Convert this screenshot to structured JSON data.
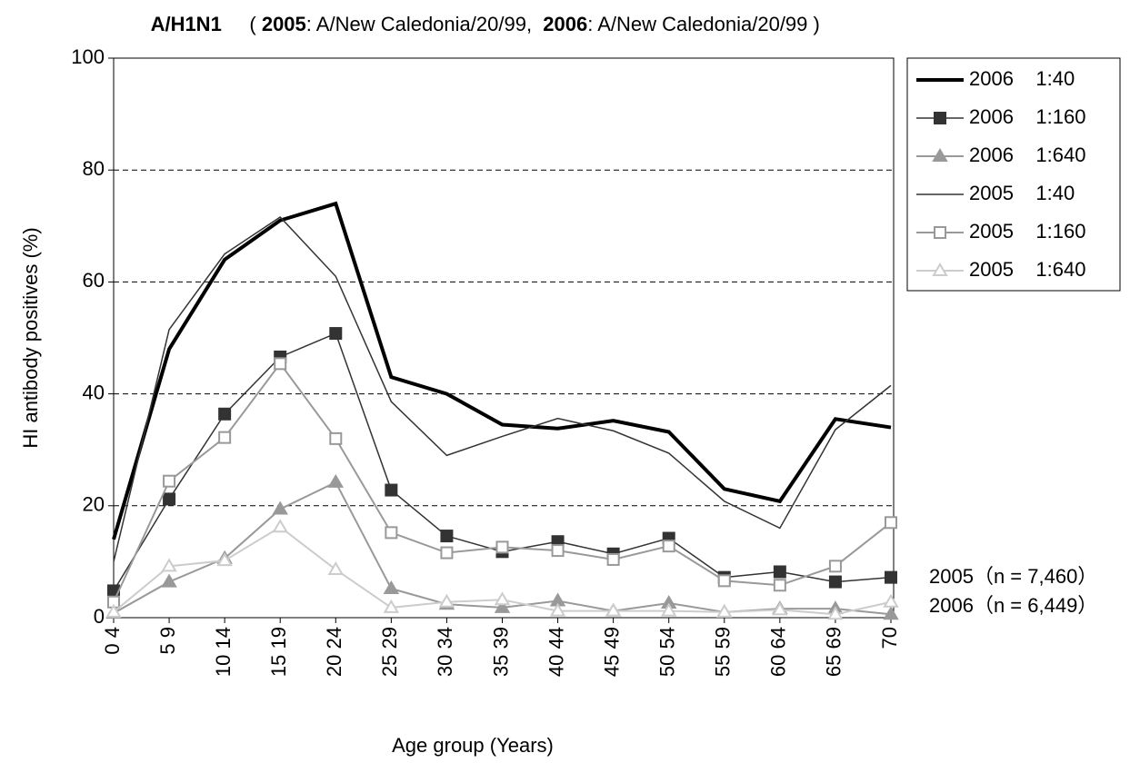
{
  "chart_data": {
    "type": "line",
    "title": "A/H1N1",
    "subtitle": {
      "open": "( ",
      "years": [
        "2005",
        "2006"
      ],
      "strains": [
        ": A/New Caledonia/20/99,  ",
        ": A/New Caledonia/20/99"
      ],
      "close": " )"
    },
    "y_label": "HI antibody positives (%)",
    "x_label": "Age group (Years)",
    "categories": [
      "0 4",
      "5 9",
      "10 14",
      "15 19",
      "20 24",
      "25 29",
      "30 34",
      "35 39",
      "40 44",
      "45 49",
      "50 54",
      "55 59",
      "60 64",
      "65 69",
      "70"
    ],
    "ylim": [
      0,
      100
    ],
    "yticks": [
      0,
      20,
      40,
      60,
      80,
      100
    ],
    "grid": true,
    "legend": "right",
    "annotations": [
      "2005（n = 7,460）",
      "2006（n = 6,449）"
    ],
    "series": [
      {
        "name": "2006    1:40",
        "color": "#000000",
        "width": 4,
        "marker": "none",
        "values": [
          14,
          48,
          64,
          71,
          74,
          43,
          40,
          34.5,
          33.8,
          35.2,
          33.2,
          23,
          20.8,
          35.5,
          34
        ]
      },
      {
        "name": "2006    1:160",
        "color": "#333333",
        "width": 1.5,
        "marker": "square",
        "filled": true,
        "values": [
          4.8,
          21.2,
          36.4,
          46.6,
          50.8,
          22.8,
          14.6,
          11.8,
          13.6,
          11.4,
          14.2,
          7.2,
          8.2,
          6.4,
          7.2
        ]
      },
      {
        "name": "2006    1:640",
        "color": "#999999",
        "width": 2,
        "marker": "triangle",
        "filled": true,
        "values": [
          0.8,
          6.4,
          10.6,
          19.4,
          24.2,
          5.2,
          2.4,
          1.8,
          3.0,
          1.2,
          2.6,
          1.0,
          1.6,
          1.6,
          0.6
        ]
      },
      {
        "name": "2005    1:40",
        "color": "#333333",
        "width": 1.5,
        "marker": "none",
        "values": [
          10,
          51.5,
          65,
          71.6,
          61,
          38.6,
          29,
          32.4,
          35.6,
          33.4,
          29.4,
          20.8,
          16,
          33.6,
          41.5
        ]
      },
      {
        "name": "2005    1:160",
        "color": "#999999",
        "width": 2,
        "marker": "square",
        "filled": false,
        "values": [
          2.8,
          24.4,
          32.2,
          45.4,
          32.0,
          15.2,
          11.6,
          12.6,
          12.0,
          10.4,
          12.8,
          6.6,
          5.8,
          9.2,
          17.0
        ]
      },
      {
        "name": "2005    1:640",
        "color": "#cccccc",
        "width": 2,
        "marker": "triangle",
        "filled": false,
        "values": [
          1.0,
          9.2,
          10.2,
          16.2,
          8.6,
          1.8,
          2.8,
          3.2,
          1.2,
          1.2,
          1.2,
          1.0,
          1.4,
          0.6,
          2.8
        ]
      }
    ]
  }
}
